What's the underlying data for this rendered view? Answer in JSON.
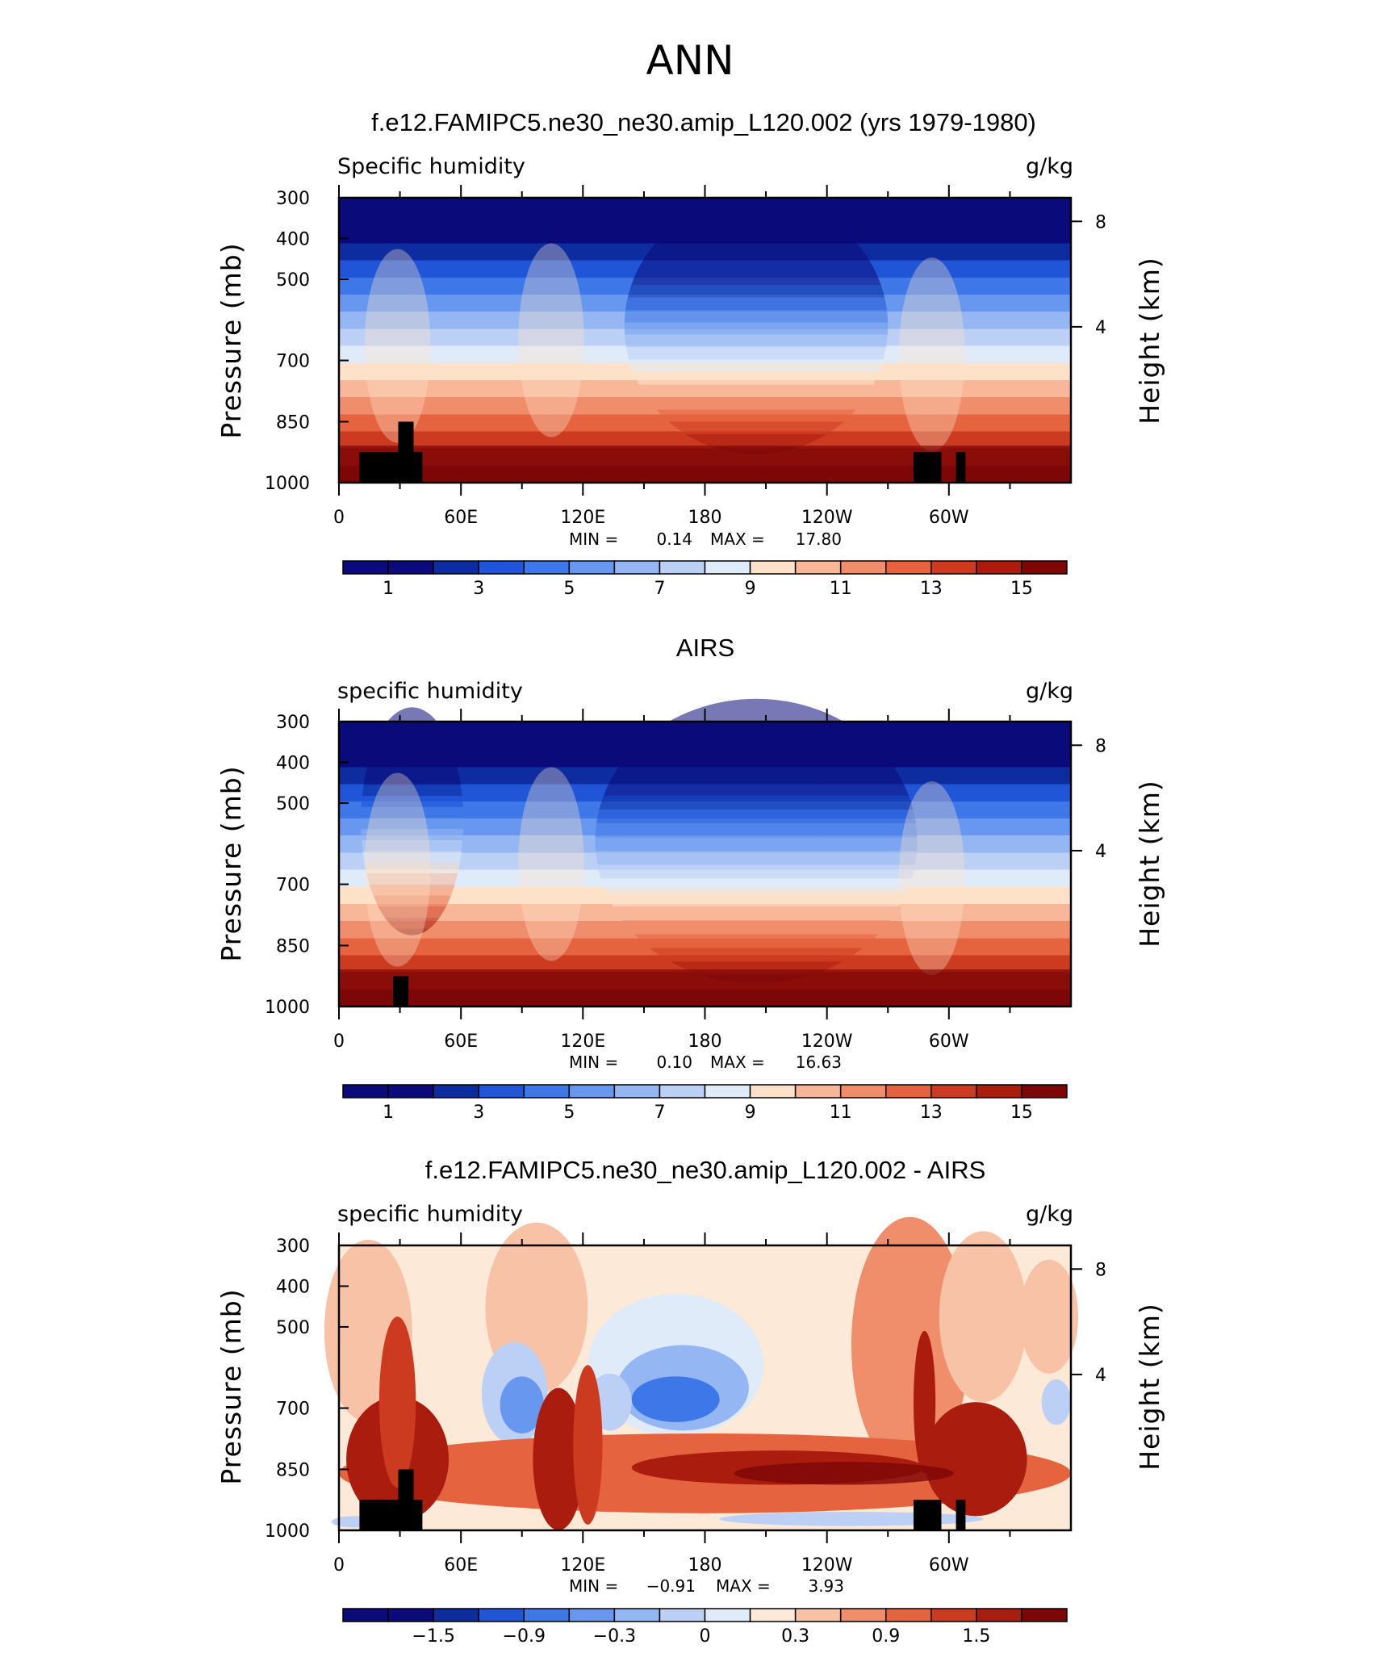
{
  "figure_title": "ANN",
  "colors": {
    "abs_palette": [
      "#0a0a7a",
      "#0c2ca0",
      "#1f55d6",
      "#3e77e8",
      "#6797ee",
      "#94b6f2",
      "#bcd0f6",
      "#e0ebfa",
      "#fde2c9",
      "#f7b798",
      "#f08d6a",
      "#e5643f",
      "#cc3a1f",
      "#aa1c0e",
      "#7d0707"
    ],
    "diff_palette": [
      "#0a0a7a",
      "#0c2ca0",
      "#1f55d6",
      "#3e77e8",
      "#6797ee",
      "#94b6f2",
      "#bcd0f6",
      "#e0ebfa",
      "#fde9d8",
      "#f7c2a6",
      "#f08d6a",
      "#e5643f",
      "#cc3a1f",
      "#aa1c0e",
      "#7d0707"
    ]
  },
  "chart_data": [
    {
      "type": "heatmap",
      "title": "f.e12.FAMIPC5.ne30_ne30.amip_L120.002 (yrs 1979-1980)",
      "variable": "Specific humidity",
      "units": "g/kg",
      "ylabel": "Pressure (mb)",
      "ylabel2": "Height (km)",
      "x_ticks": [
        "0",
        "60E",
        "120E",
        "180",
        "120W",
        "60W"
      ],
      "y_ticks": [
        "300",
        "400",
        "500",
        "700",
        "850",
        "1000"
      ],
      "y2_ticks": [
        "8",
        "4"
      ],
      "stats": {
        "min_label": "MIN =",
        "min": "0.14",
        "max_label": "MAX =",
        "max": "17.80"
      },
      "colorbar_labels": [
        "1",
        "3",
        "5",
        "7",
        "9",
        "11",
        "13",
        "15"
      ],
      "colorbar_levels": [
        1,
        2,
        3,
        4,
        5,
        6,
        7,
        8,
        9,
        10,
        11,
        12,
        13,
        14,
        15
      ]
    },
    {
      "type": "heatmap",
      "title": "AIRS",
      "variable": "specific humidity",
      "units": "g/kg",
      "ylabel": "Pressure (mb)",
      "ylabel2": "Height (km)",
      "x_ticks": [
        "0",
        "60E",
        "120E",
        "180",
        "120W",
        "60W"
      ],
      "y_ticks": [
        "300",
        "400",
        "500",
        "700",
        "850",
        "1000"
      ],
      "y2_ticks": [
        "8",
        "4"
      ],
      "stats": {
        "min_label": "MIN =",
        "min": "0.10",
        "max_label": "MAX =",
        "max": "16.63"
      },
      "colorbar_labels": [
        "1",
        "3",
        "5",
        "7",
        "9",
        "11",
        "13",
        "15"
      ],
      "colorbar_levels": [
        1,
        2,
        3,
        4,
        5,
        6,
        7,
        8,
        9,
        10,
        11,
        12,
        13,
        14,
        15
      ]
    },
    {
      "type": "heatmap",
      "title": "f.e12.FAMIPC5.ne30_ne30.amip_L120.002 - AIRS",
      "variable": "specific humidity",
      "units": "g/kg",
      "ylabel": "Pressure (mb)",
      "ylabel2": "Height (km)",
      "x_ticks": [
        "0",
        "60E",
        "120E",
        "180",
        "120W",
        "60W"
      ],
      "y_ticks": [
        "300",
        "400",
        "500",
        "700",
        "850",
        "1000"
      ],
      "y2_ticks": [
        "8",
        "4"
      ],
      "stats": {
        "min_label": "MIN =",
        "min": "−0.91",
        "max_label": "MAX =",
        "max": "3.93"
      },
      "colorbar_labels": [
        "−1.5",
        "−0.9",
        "−0.3",
        "0",
        "0.3",
        "0.9",
        "1.5"
      ],
      "colorbar_levels": [
        -1.8,
        -1.5,
        -1.2,
        -0.9,
        -0.6,
        -0.3,
        -0.1,
        0,
        0.1,
        0.3,
        0.6,
        0.9,
        1.2,
        1.5,
        1.8
      ]
    }
  ]
}
